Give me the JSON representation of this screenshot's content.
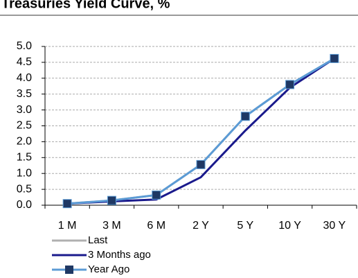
{
  "chart_data": {
    "type": "line",
    "title": "Treasuries Yield Curve, %",
    "categories": [
      "1 M",
      "3 M",
      "6 M",
      "2 Y",
      "5 Y",
      "10 Y",
      "30 Y"
    ],
    "series": [
      {
        "name": "Last",
        "color": "#b0b0b0",
        "values": [
          0.05,
          0.15,
          0.32,
          1.28,
          2.8,
          3.8,
          4.62
        ]
      },
      {
        "name": "3 Months ago",
        "color": "#1a1a8c",
        "values": [
          0.05,
          0.12,
          0.18,
          0.88,
          2.35,
          3.7,
          4.62
        ]
      },
      {
        "name": "Year Ago",
        "color": "#5b9bd5",
        "marker_color": "#1f3864",
        "values": [
          0.05,
          0.15,
          0.32,
          1.28,
          2.8,
          3.8,
          4.62
        ]
      }
    ],
    "ylim": [
      0,
      5
    ],
    "yticks": [
      {
        "value": 0,
        "label": "0.0"
      },
      {
        "value": 0.5,
        "label": "0.5"
      },
      {
        "value": 1,
        "label": "1.0"
      },
      {
        "value": 1.5,
        "label": "1.5"
      },
      {
        "value": 2,
        "label": "2.0"
      },
      {
        "value": 2.5,
        "label": "2.5"
      },
      {
        "value": 3,
        "label": "3.0"
      },
      {
        "value": 3.5,
        "label": "3.5"
      },
      {
        "value": 4,
        "label": "4.0"
      },
      {
        "value": 4.5,
        "label": "4.5"
      },
      {
        "value": 5,
        "label": "5.0"
      }
    ],
    "grid": true
  }
}
